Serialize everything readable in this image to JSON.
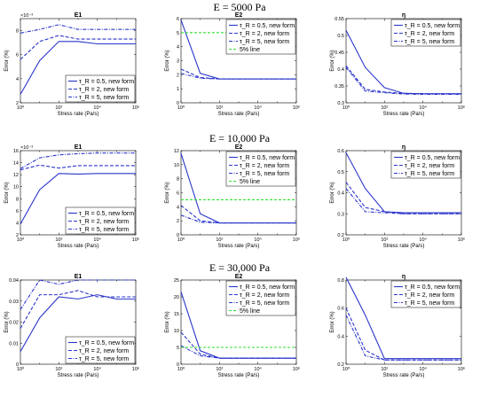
{
  "figure": {
    "row_titles": [
      "E = 5000 Pa",
      "E = 10,000 Pa",
      "E = 30,000 Pa"
    ]
  },
  "chart_data": [
    {
      "type": "line",
      "title": "E1",
      "xlabel": "Stress rate (Pa/s)",
      "ylabel": "Error (%)",
      "xscale": "log",
      "xlim": [
        1,
        1000000
      ],
      "ylim": [
        2,
        9
      ],
      "exponent": "×10⁻³",
      "yticks": [
        2,
        4,
        6,
        8
      ],
      "yticklabels": [
        "2",
        "4",
        "6",
        "8"
      ],
      "legend": "bottom-right",
      "x": [
        1,
        10,
        100,
        1000,
        10000,
        100000,
        1000000
      ],
      "series": [
        {
          "name": "τ_R = 0.5, new form",
          "values": [
            2.7,
            5.5,
            7.1,
            7.1,
            6.9,
            6.9,
            6.9
          ],
          "dash": "solid"
        },
        {
          "name": "τ_R =   2, new form",
          "values": [
            5.6,
            7.1,
            7.6,
            7.3,
            7.3,
            7.3,
            7.3
          ],
          "dash": "dashed"
        },
        {
          "name": "τ_R =   5, new form",
          "values": [
            7.8,
            8.1,
            8.5,
            8.1,
            8.1,
            8.1,
            8.1
          ],
          "dash": "dashdot"
        }
      ]
    },
    {
      "type": "line",
      "title": "E2",
      "xlabel": "Stress rate (Pa/s)",
      "ylabel": "Error (%)",
      "xscale": "log",
      "xlim": [
        1,
        1000000
      ],
      "ylim": [
        0,
        6
      ],
      "yticks": [
        0,
        1,
        2,
        3,
        4,
        5,
        6
      ],
      "yticklabels": [
        "0",
        "1",
        "2",
        "3",
        "4",
        "5",
        "6"
      ],
      "legend": "top-right",
      "x": [
        1,
        10,
        100,
        1000,
        10000,
        100000,
        1000000
      ],
      "series": [
        {
          "name": "τ_R = 0.5, new form",
          "values": [
            5.9,
            2.1,
            1.7,
            1.7,
            1.7,
            1.7,
            1.7
          ],
          "dash": "solid"
        },
        {
          "name": "τ_R =   2, new form",
          "values": [
            2.4,
            1.8,
            1.7,
            1.7,
            1.7,
            1.7,
            1.7
          ],
          "dash": "dashed"
        },
        {
          "name": "τ_R =   5, new form",
          "values": [
            2.1,
            1.75,
            1.7,
            1.7,
            1.7,
            1.7,
            1.7
          ],
          "dash": "dashdot"
        },
        {
          "name": "5% line",
          "values": [
            5,
            5,
            5,
            5,
            5,
            5,
            5
          ],
          "dash": "green"
        }
      ]
    },
    {
      "type": "line",
      "title": "η",
      "xlabel": "Stress rate (Pa/s)",
      "ylabel": "Error (%)",
      "xscale": "log",
      "xlim": [
        1,
        1000000
      ],
      "ylim": [
        0.3,
        0.55
      ],
      "yticks": [
        0.3,
        0.35,
        0.4,
        0.45,
        0.5,
        0.55
      ],
      "yticklabels": [
        "0.3",
        "0.35",
        "0.4",
        "0.45",
        "0.5",
        "0.55"
      ],
      "legend": "top-right",
      "x": [
        1,
        10,
        100,
        1000,
        10000,
        100000,
        1000000
      ],
      "series": [
        {
          "name": "τ_R = 0.5, new form",
          "values": [
            0.515,
            0.405,
            0.345,
            0.328,
            0.327,
            0.327,
            0.327
          ],
          "dash": "solid"
        },
        {
          "name": "τ_R =   2, new form",
          "values": [
            0.41,
            0.34,
            0.332,
            0.328,
            0.327,
            0.327,
            0.327
          ],
          "dash": "dashed"
        },
        {
          "name": "τ_R =   5, new form",
          "values": [
            0.405,
            0.335,
            0.33,
            0.326,
            0.325,
            0.325,
            0.325
          ],
          "dash": "dashdot"
        }
      ]
    },
    {
      "type": "line",
      "title": "E1",
      "xlabel": "Stress rate (Pa/s)",
      "ylabel": "Error (%)",
      "xscale": "log",
      "xlim": [
        1,
        1000000
      ],
      "ylim": [
        2,
        16
      ],
      "exponent": "×10⁻³",
      "yticks": [
        2,
        4,
        6,
        8,
        10,
        12,
        14,
        16
      ],
      "yticklabels": [
        "2",
        "4",
        "6",
        "8",
        "10",
        "12",
        "14",
        "16"
      ],
      "legend": "bottom-right",
      "x": [
        1,
        10,
        100,
        1000,
        10000,
        100000,
        1000000
      ],
      "series": [
        {
          "name": "τ_R = 0.5, new form",
          "values": [
            3.8,
            9.5,
            12.2,
            12.1,
            12.2,
            12.2,
            12.2
          ],
          "dash": "solid"
        },
        {
          "name": "τ_R =   2, new form",
          "values": [
            12.8,
            13.6,
            13.1,
            13.5,
            13.5,
            13.5,
            13.5
          ],
          "dash": "dashed"
        },
        {
          "name": "τ_R =   5, new form",
          "values": [
            13.0,
            14.8,
            15.3,
            15.5,
            15.6,
            15.6,
            15.6
          ],
          "dash": "dashdot"
        }
      ]
    },
    {
      "type": "line",
      "title": "E2",
      "xlabel": "Stress rate (Pa/s)",
      "ylabel": "Error (%)",
      "xscale": "log",
      "xlim": [
        1,
        1000000
      ],
      "ylim": [
        0,
        12
      ],
      "yticks": [
        0,
        2,
        4,
        6,
        8,
        10,
        12
      ],
      "yticklabels": [
        "0",
        "2",
        "4",
        "6",
        "8",
        "10",
        "12"
      ],
      "legend": "top-right",
      "x": [
        1,
        10,
        100,
        1000,
        10000,
        100000,
        1000000
      ],
      "series": [
        {
          "name": "τ_R = 0.5, new form",
          "values": [
            11.6,
            3.0,
            1.7,
            1.7,
            1.7,
            1.7,
            1.7
          ],
          "dash": "solid"
        },
        {
          "name": "τ_R =   2, new form",
          "values": [
            4.2,
            2.0,
            1.7,
            1.7,
            1.7,
            1.7,
            1.7
          ],
          "dash": "dashed"
        },
        {
          "name": "τ_R =   5, new form",
          "values": [
            2.8,
            1.8,
            1.7,
            1.7,
            1.7,
            1.7,
            1.7
          ],
          "dash": "dashdot"
        },
        {
          "name": "5% line",
          "values": [
            5,
            5,
            5,
            5,
            5,
            5,
            5
          ],
          "dash": "green"
        }
      ]
    },
    {
      "type": "line",
      "title": "η",
      "xlabel": "Stress rate (Pa/s)",
      "ylabel": "Error (%)",
      "xscale": "log",
      "xlim": [
        1,
        1000000
      ],
      "ylim": [
        0.2,
        0.6
      ],
      "yticks": [
        0.2,
        0.3,
        0.4,
        0.5,
        0.6
      ],
      "yticklabels": [
        "0.2",
        "0.3",
        "0.4",
        "0.5",
        "0.6"
      ],
      "legend": "top-right",
      "x": [
        1,
        10,
        100,
        1000,
        10000,
        100000,
        1000000
      ],
      "series": [
        {
          "name": "τ_R = 0.5, new form",
          "values": [
            0.59,
            0.42,
            0.31,
            0.305,
            0.305,
            0.305,
            0.305
          ],
          "dash": "solid"
        },
        {
          "name": "τ_R =   2, new form",
          "values": [
            0.45,
            0.33,
            0.31,
            0.3,
            0.3,
            0.3,
            0.3
          ],
          "dash": "dashed"
        },
        {
          "name": "τ_R =   5, new form",
          "values": [
            0.42,
            0.31,
            0.305,
            0.3,
            0.3,
            0.3,
            0.3
          ],
          "dash": "dashdot"
        }
      ]
    },
    {
      "type": "line",
      "title": "E1",
      "xlabel": "Stress rate (Pa/s)",
      "ylabel": "Error (%)",
      "xscale": "log",
      "xlim": [
        1,
        1000000
      ],
      "ylim": [
        0,
        0.04
      ],
      "yticks": [
        0,
        0.01,
        0.02,
        0.03,
        0.04
      ],
      "yticklabels": [
        "0",
        "0.01",
        "0.02",
        "0.03",
        "0.04"
      ],
      "legend": "bottom-right",
      "x": [
        1,
        10,
        100,
        1000,
        10000,
        100000,
        1000000
      ],
      "series": [
        {
          "name": "τ_R = 0.5, new form",
          "values": [
            0.006,
            0.022,
            0.032,
            0.031,
            0.033,
            0.031,
            0.031
          ],
          "dash": "solid"
        },
        {
          "name": "τ_R =   2, new form",
          "values": [
            0.017,
            0.033,
            0.033,
            0.035,
            0.032,
            0.032,
            0.032
          ],
          "dash": "dashed"
        },
        {
          "name": "τ_R =   5, new form",
          "values": [
            0.026,
            0.04,
            0.038,
            0.04,
            0.04,
            0.04,
            0.04
          ],
          "dash": "dashdot"
        }
      ]
    },
    {
      "type": "line",
      "title": "E2",
      "xlabel": "Stress rate (Pa/s)",
      "ylabel": "Error (%)",
      "xscale": "log",
      "xlim": [
        1,
        1000000
      ],
      "ylim": [
        0,
        25
      ],
      "yticks": [
        0,
        5,
        10,
        15,
        20,
        25
      ],
      "yticklabels": [
        "0",
        "5",
        "10",
        "15",
        "20",
        "25"
      ],
      "legend": "top-right",
      "x": [
        1,
        10,
        100,
        1000,
        10000,
        100000,
        1000000
      ],
      "series": [
        {
          "name": "τ_R = 0.5, new form",
          "values": [
            21.5,
            4.0,
            1.8,
            1.8,
            1.8,
            1.8,
            1.8
          ],
          "dash": "solid"
        },
        {
          "name": "τ_R =   2, new form",
          "values": [
            9.5,
            3.0,
            1.8,
            1.8,
            1.8,
            1.8,
            1.8
          ],
          "dash": "dashed"
        },
        {
          "name": "τ_R =   5, new form",
          "values": [
            5.5,
            2.5,
            1.8,
            1.8,
            1.8,
            1.8,
            1.8
          ],
          "dash": "dashdot"
        },
        {
          "name": "5% line",
          "values": [
            5,
            5,
            5,
            5,
            5,
            5,
            5
          ],
          "dash": "green"
        }
      ]
    },
    {
      "type": "line",
      "title": "η",
      "xlabel": "Stress rate (Pa/s)",
      "ylabel": "Error (%)",
      "xscale": "log",
      "xlim": [
        1,
        1000000
      ],
      "ylim": [
        0.2,
        0.8
      ],
      "yticks": [
        0.2,
        0.4,
        0.6,
        0.8
      ],
      "yticklabels": [
        "0.2",
        "0.4",
        "0.6",
        "0.8"
      ],
      "legend": "top-right",
      "x": [
        1,
        10,
        100,
        1000,
        10000,
        100000,
        1000000
      ],
      "series": [
        {
          "name": "τ_R = 0.5, new form",
          "values": [
            0.82,
            0.55,
            0.24,
            0.24,
            0.24,
            0.24,
            0.24
          ],
          "dash": "solid"
        },
        {
          "name": "τ_R =   2, new form",
          "values": [
            0.6,
            0.3,
            0.23,
            0.23,
            0.23,
            0.23,
            0.23
          ],
          "dash": "dashed"
        },
        {
          "name": "τ_R =   5, new form",
          "values": [
            0.55,
            0.26,
            0.23,
            0.23,
            0.23,
            0.23,
            0.23
          ],
          "dash": "dashdot"
        }
      ]
    }
  ],
  "xticklabels": [
    "10⁰",
    "10²",
    "10⁴",
    "10⁶"
  ],
  "colors": {
    "series": "#2a35c9",
    "five_percent": "#2ee02e",
    "axis": "#000000"
  }
}
